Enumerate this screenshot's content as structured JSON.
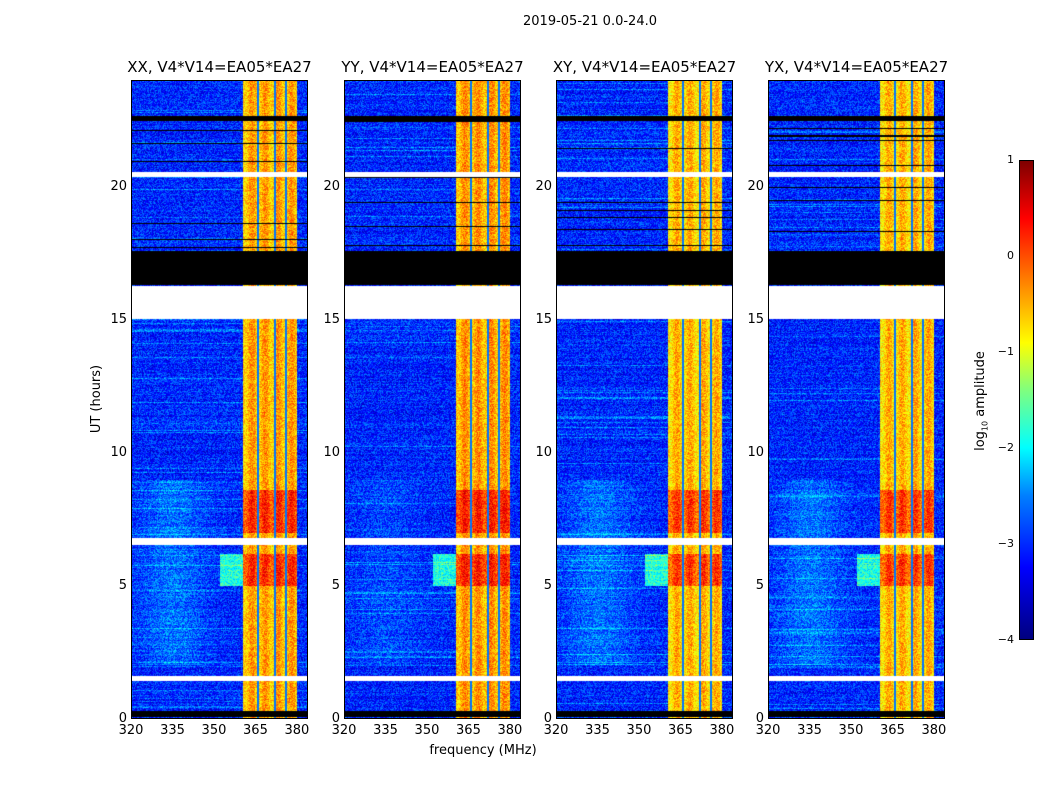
{
  "suptitle": "2019-05-21 0.0-24.0",
  "chart_data": {
    "type": "heatmap",
    "title": "2019-05-21 0.0-24.0",
    "xlabel": "frequency (MHz)",
    "ylabel": "UT (hours)",
    "xlim": [
      320,
      384
    ],
    "ylim": [
      0,
      24
    ],
    "xticks": [
      "320",
      "335",
      "350",
      "365",
      "380"
    ],
    "yticks": [
      "0",
      "5",
      "10",
      "15",
      "20"
    ],
    "panels": [
      {
        "title": "XX, V4*V14=EA05*EA27",
        "rfi_level": -0.5
      },
      {
        "title": "YY, V4*V14=EA05*EA27",
        "rfi_level": -0.45
      },
      {
        "title": "XY, V4*V14=EA05*EA27",
        "rfi_level": -0.6
      },
      {
        "title": "YX, V4*V14=EA05*EA27",
        "rfi_level": -0.6
      }
    ],
    "background_level": -3.2,
    "rfi_band_mhz": [
      360.5,
      380
    ],
    "rfi_notches_mhz": [
      366,
      372,
      376
    ],
    "strong_rfi_hours": [
      [
        5.0,
        6.2
      ],
      [
        7.0,
        8.6
      ]
    ],
    "flagged_white_hours": [
      [
        1.4,
        1.6
      ],
      [
        6.55,
        6.8
      ],
      [
        15.05,
        16.3
      ],
      [
        20.4,
        20.6
      ]
    ],
    "flagged_black_hours": [
      [
        16.35,
        17.6
      ],
      [
        0.05,
        0.3
      ],
      [
        22.5,
        22.7
      ]
    ],
    "colorbar": {
      "label": "log10 amplitude",
      "label_main": "log",
      "label_sub": "10",
      "label_rest": " amplitude",
      "range": [
        -4,
        1
      ],
      "ticks": [
        "1",
        "0",
        "−1",
        "−2",
        "−3",
        "−4"
      ],
      "colormap": "jet"
    }
  }
}
